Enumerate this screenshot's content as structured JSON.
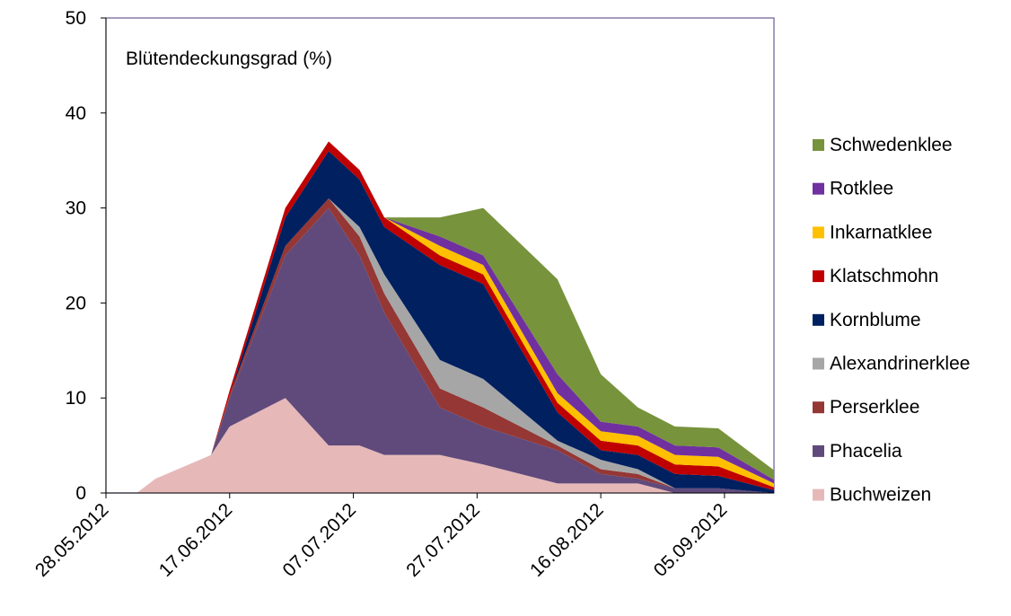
{
  "chart_data": {
    "type": "stacked_area",
    "title": "Blütendeckungsgrad (%)",
    "x": [
      "02.06.2012",
      "05.06.2012",
      "14.06.2012",
      "17.06.2012",
      "26.06.2012",
      "03.07.2012",
      "08.07.2012",
      "12.07.2012",
      "21.07.2012",
      "28.07.2012",
      "09.08.2012",
      "16.08.2012",
      "22.08.2012",
      "28.08.2012",
      "04.09.2012",
      "13.09.2012"
    ],
    "xlim": [
      "28.05.2012",
      "13.09.2012"
    ],
    "xticks": [
      "28.05.2012",
      "17.06.2012",
      "07.07.2012",
      "27.07.2012",
      "16.08.2012",
      "05.09.2012"
    ],
    "ylim": [
      0,
      50
    ],
    "yticks": [
      0,
      10,
      20,
      30,
      40,
      50
    ],
    "legend": "right",
    "series": [
      {
        "name": "Buchweizen",
        "color": "#e6b9b8",
        "values": [
          0,
          1.5,
          4,
          7,
          10,
          5,
          5,
          4,
          4,
          3,
          1,
          1,
          1,
          0,
          0,
          0
        ]
      },
      {
        "name": "Phacelia",
        "color": "#604a7b",
        "values": [
          0,
          0,
          0,
          3,
          15,
          25,
          20,
          15,
          5,
          4,
          3.5,
          1,
          0.5,
          0.5,
          0.5,
          0
        ]
      },
      {
        "name": "Perserklee",
        "color": "#953735",
        "values": [
          0,
          0,
          0,
          0.3,
          1,
          1,
          2,
          2,
          2,
          2,
          0.5,
          0.5,
          0.5,
          0,
          0,
          0
        ]
      },
      {
        "name": "Alexandrinerklee",
        "color": "#a6a6a6",
        "values": [
          0,
          0,
          0,
          0,
          0,
          0,
          1,
          2,
          3,
          3,
          0.5,
          1,
          0.5,
          0,
          0,
          0
        ]
      },
      {
        "name": "Kornblume",
        "color": "#002060",
        "values": [
          0,
          0,
          0,
          0,
          3,
          5,
          5,
          5,
          10,
          10,
          3,
          1,
          1.5,
          1.5,
          1.3,
          0.3
        ]
      },
      {
        "name": "Klatschmohn",
        "color": "#c00000",
        "values": [
          0,
          0,
          0,
          0.5,
          1,
          1,
          1,
          1,
          1,
          1,
          1,
          1,
          1,
          1,
          1,
          0.3
        ]
      },
      {
        "name": "Inkarnatklee",
        "color": "#ffc000",
        "values": [
          0,
          0,
          0,
          0,
          0,
          0,
          0,
          0,
          1,
          1,
          1,
          1,
          1,
          1,
          1,
          0.4
        ]
      },
      {
        "name": "Rotklee",
        "color": "#7030a0",
        "values": [
          0,
          0,
          0,
          0,
          0,
          0,
          0,
          0,
          1,
          1,
          2,
          1,
          1,
          1,
          1,
          0.4
        ]
      },
      {
        "name": "Schwedenklee",
        "color": "#77933c",
        "values": [
          0,
          0,
          0,
          0,
          0,
          0,
          0,
          0,
          2,
          5,
          10,
          5,
          2,
          2,
          2,
          1
        ]
      }
    ]
  }
}
